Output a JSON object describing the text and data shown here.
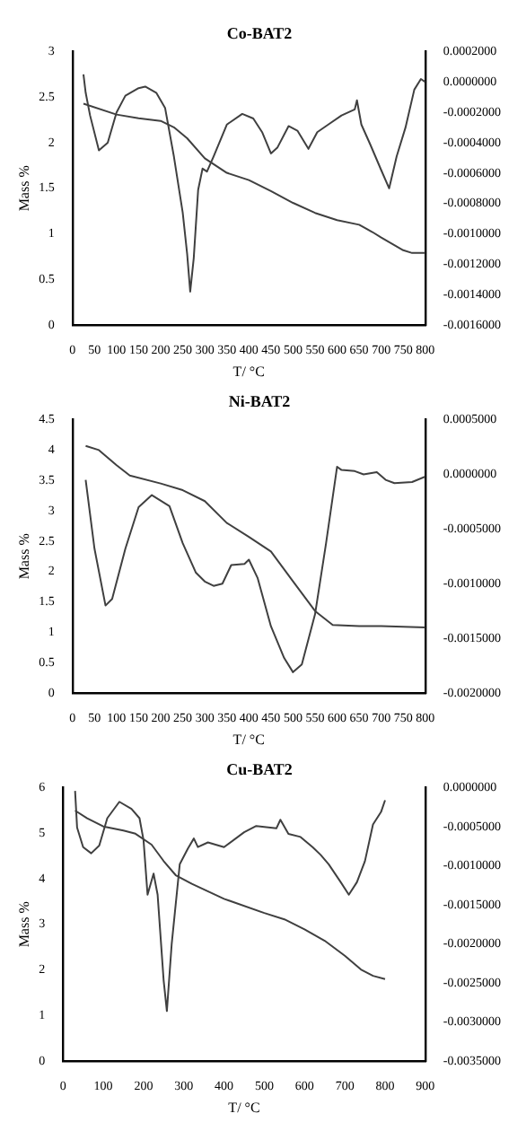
{
  "chart_data": [
    {
      "type": "line",
      "title": "Co-BAT2",
      "xlabel": "T/ °C",
      "ylabel": "Mass %",
      "marker": "none",
      "xlim": [
        0,
        800
      ],
      "xticks": [
        0,
        50,
        100,
        150,
        200,
        250,
        300,
        350,
        400,
        450,
        500,
        550,
        600,
        650,
        700,
        750,
        800
      ],
      "ylim": [
        0,
        3
      ],
      "yticks": [
        0,
        0.5,
        1,
        1.5,
        2,
        2.5,
        3
      ],
      "y2lim": [
        -0.0016,
        0.0002
      ],
      "y2ticks": [
        {
          "value": 0.0002,
          "label": "0.0002000"
        },
        {
          "value": 0,
          "label": "0.0000000"
        },
        {
          "value": -0.0002,
          "label": "-0.0002000"
        },
        {
          "value": -0.0004,
          "label": "-0.0004000"
        },
        {
          "value": -0.0006,
          "label": "-0.0006000"
        },
        {
          "value": -0.0008,
          "label": "-0.0008000"
        },
        {
          "value": -0.001,
          "label": "-0.0010000"
        },
        {
          "value": -0.0012,
          "label": "-0.0012000"
        },
        {
          "value": -0.0014,
          "label": "-0.0014000"
        },
        {
          "value": -0.0016,
          "label": "-0.0016000"
        }
      ],
      "series": [
        {
          "color": "#404040",
          "x": [
            25,
            100,
            150,
            200,
            230,
            260,
            300,
            350,
            400,
            450,
            500,
            550,
            600,
            650,
            680,
            700,
            750,
            770,
            800
          ],
          "values": [
            2.43,
            2.31,
            2.27,
            2.24,
            2.17,
            2.05,
            1.83,
            1.67,
            1.59,
            1.47,
            1.34,
            1.23,
            1.15,
            1.1,
            1.02,
            0.96,
            0.82,
            0.79,
            0.79
          ]
        },
        {
          "color": "#404040",
          "axis": "y2",
          "x": [
            25,
            30,
            40,
            60,
            80,
            100,
            120,
            150,
            165,
            190,
            210,
            230,
            250,
            260,
            267,
            275,
            285,
            295,
            305,
            320,
            350,
            385,
            410,
            430,
            450,
            465,
            490,
            510,
            535,
            555,
            580,
            610,
            640,
            645,
            655,
            675,
            700,
            718,
            735,
            755,
            775,
            790,
            800
          ],
          "values": [
            5e-05,
            -7e-05,
            -0.00022,
            -0.00045,
            -0.0004,
            -0.0002,
            -9e-05,
            -4e-05,
            -3e-05,
            -7e-05,
            -0.00017,
            -0.00049,
            -0.00086,
            -0.00113,
            -0.00138,
            -0.00116,
            -0.00071,
            -0.00057,
            -0.00059,
            -0.00049,
            -0.00028,
            -0.00021,
            -0.00024,
            -0.00033,
            -0.00047,
            -0.00043,
            -0.00029,
            -0.00032,
            -0.00044,
            -0.00033,
            -0.00028,
            -0.00022,
            -0.00018,
            -0.00012,
            -0.00028,
            -0.00041,
            -0.00058,
            -0.0007,
            -0.00049,
            -0.0003,
            -5e-05,
            2e-05,
            0
          ]
        }
      ]
    },
    {
      "type": "line",
      "title": "Ni-BAT2",
      "xlabel": "T/ °C",
      "ylabel": "Mass %",
      "marker": "none",
      "xlim": [
        0,
        800
      ],
      "xticks": [
        0,
        50,
        100,
        150,
        200,
        250,
        300,
        350,
        400,
        450,
        500,
        550,
        600,
        650,
        700,
        750,
        800
      ],
      "ylim": [
        0,
        4.5
      ],
      "yticks": [
        0,
        0.5,
        1,
        1.5,
        2,
        2.5,
        3,
        3.5,
        4,
        4.5
      ],
      "y2lim": [
        -0.002,
        0.0005
      ],
      "y2ticks": [
        {
          "value": 0.0005,
          "label": "0.0005000"
        },
        {
          "value": 0,
          "label": "0.0000000"
        },
        {
          "value": -0.0005,
          "label": "-0.0005000"
        },
        {
          "value": -0.001,
          "label": "-0.0010000"
        },
        {
          "value": -0.0015,
          "label": "-0.0015000"
        },
        {
          "value": -0.002,
          "label": "-0.0020000"
        }
      ],
      "series": [
        {
          "color": "#404040",
          "x": [
            30,
            60,
            100,
            130,
            200,
            250,
            300,
            350,
            400,
            450,
            500,
            550,
            590,
            650,
            700,
            800
          ],
          "values": [
            4.07,
            4.0,
            3.75,
            3.58,
            3.45,
            3.34,
            3.16,
            2.8,
            2.57,
            2.33,
            1.84,
            1.35,
            1.12,
            1.1,
            1.1,
            1.08
          ]
        },
        {
          "color": "#404040",
          "axis": "y2",
          "x": [
            30,
            50,
            75,
            90,
            120,
            150,
            180,
            220,
            250,
            280,
            300,
            320,
            340,
            360,
            390,
            400,
            420,
            450,
            480,
            500,
            520,
            550,
            575,
            600,
            610,
            640,
            660,
            690,
            710,
            730,
            770,
            800
          ],
          "values": [
            -5e-05,
            -0.00068,
            -0.0012,
            -0.00114,
            -0.00068,
            -0.0003,
            -0.00019,
            -0.00029,
            -0.00063,
            -0.0009,
            -0.00098,
            -0.00102,
            -0.001,
            -0.00083,
            -0.00082,
            -0.00078,
            -0.00095,
            -0.00139,
            -0.00168,
            -0.00181,
            -0.00174,
            -0.00128,
            -0.00063,
            7e-05,
            4e-05,
            3e-05,
            0,
            2e-05,
            -5e-05,
            -8e-05,
            -7e-05,
            -2e-05
          ]
        }
      ]
    },
    {
      "type": "line",
      "title": "Cu-BAT2",
      "xlabel": "T/ °C",
      "ylabel": "Mass %",
      "marker": "none",
      "xlim": [
        0,
        900
      ],
      "xticks": [
        0,
        100,
        200,
        300,
        400,
        500,
        600,
        700,
        800,
        900
      ],
      "ylim": [
        0,
        6
      ],
      "yticks": [
        0,
        1,
        2,
        3,
        4,
        5,
        6
      ],
      "y2lim": [
        -0.0035,
        0
      ],
      "y2ticks": [
        {
          "value": 0,
          "label": "0.0000000"
        },
        {
          "value": -0.0005,
          "label": "-0.0005000"
        },
        {
          "value": -0.001,
          "label": "-0.0010000"
        },
        {
          "value": -0.0015,
          "label": "-0.0015000"
        },
        {
          "value": -0.002,
          "label": "-0.0020000"
        },
        {
          "value": -0.0025,
          "label": "-0.0025000"
        },
        {
          "value": -0.003,
          "label": "-0.0030000"
        },
        {
          "value": -0.0035,
          "label": "-0.0035000"
        }
      ],
      "series": [
        {
          "color": "#404040",
          "x": [
            30,
            60,
            100,
            150,
            180,
            220,
            250,
            280,
            320,
            400,
            500,
            550,
            600,
            650,
            700,
            740,
            770,
            800
          ],
          "values": [
            5.5,
            5.33,
            5.15,
            5.06,
            4.99,
            4.75,
            4.39,
            4.08,
            3.89,
            3.56,
            3.25,
            3.11,
            2.89,
            2.64,
            2.31,
            2.01,
            1.87,
            1.8
          ]
        },
        {
          "color": "#404040",
          "axis": "y2",
          "x": [
            30,
            35,
            50,
            70,
            90,
            110,
            140,
            170,
            190,
            200,
            210,
            225,
            235,
            250,
            258,
            270,
            290,
            310,
            325,
            335,
            360,
            400,
            450,
            480,
            530,
            540,
            560,
            590,
            620,
            640,
            660,
            690,
            710,
            730,
            750,
            770,
            790,
            800
          ],
          "values": [
            -4e-05,
            -0.00051,
            -0.00076,
            -0.00084,
            -0.00074,
            -0.00039,
            -0.00018,
            -0.00027,
            -0.00039,
            -0.00067,
            -0.00137,
            -0.0011,
            -0.00137,
            -0.00247,
            -0.00286,
            -0.002,
            -0.00098,
            -0.00078,
            -0.00065,
            -0.00076,
            -0.0007,
            -0.00076,
            -0.00057,
            -0.00049,
            -0.00052,
            -0.00041,
            -0.00059,
            -0.00063,
            -0.00076,
            -0.00086,
            -0.00098,
            -0.00121,
            -0.00137,
            -0.00121,
            -0.00094,
            -0.00047,
            -0.00031,
            -0.00016
          ]
        }
      ]
    }
  ]
}
